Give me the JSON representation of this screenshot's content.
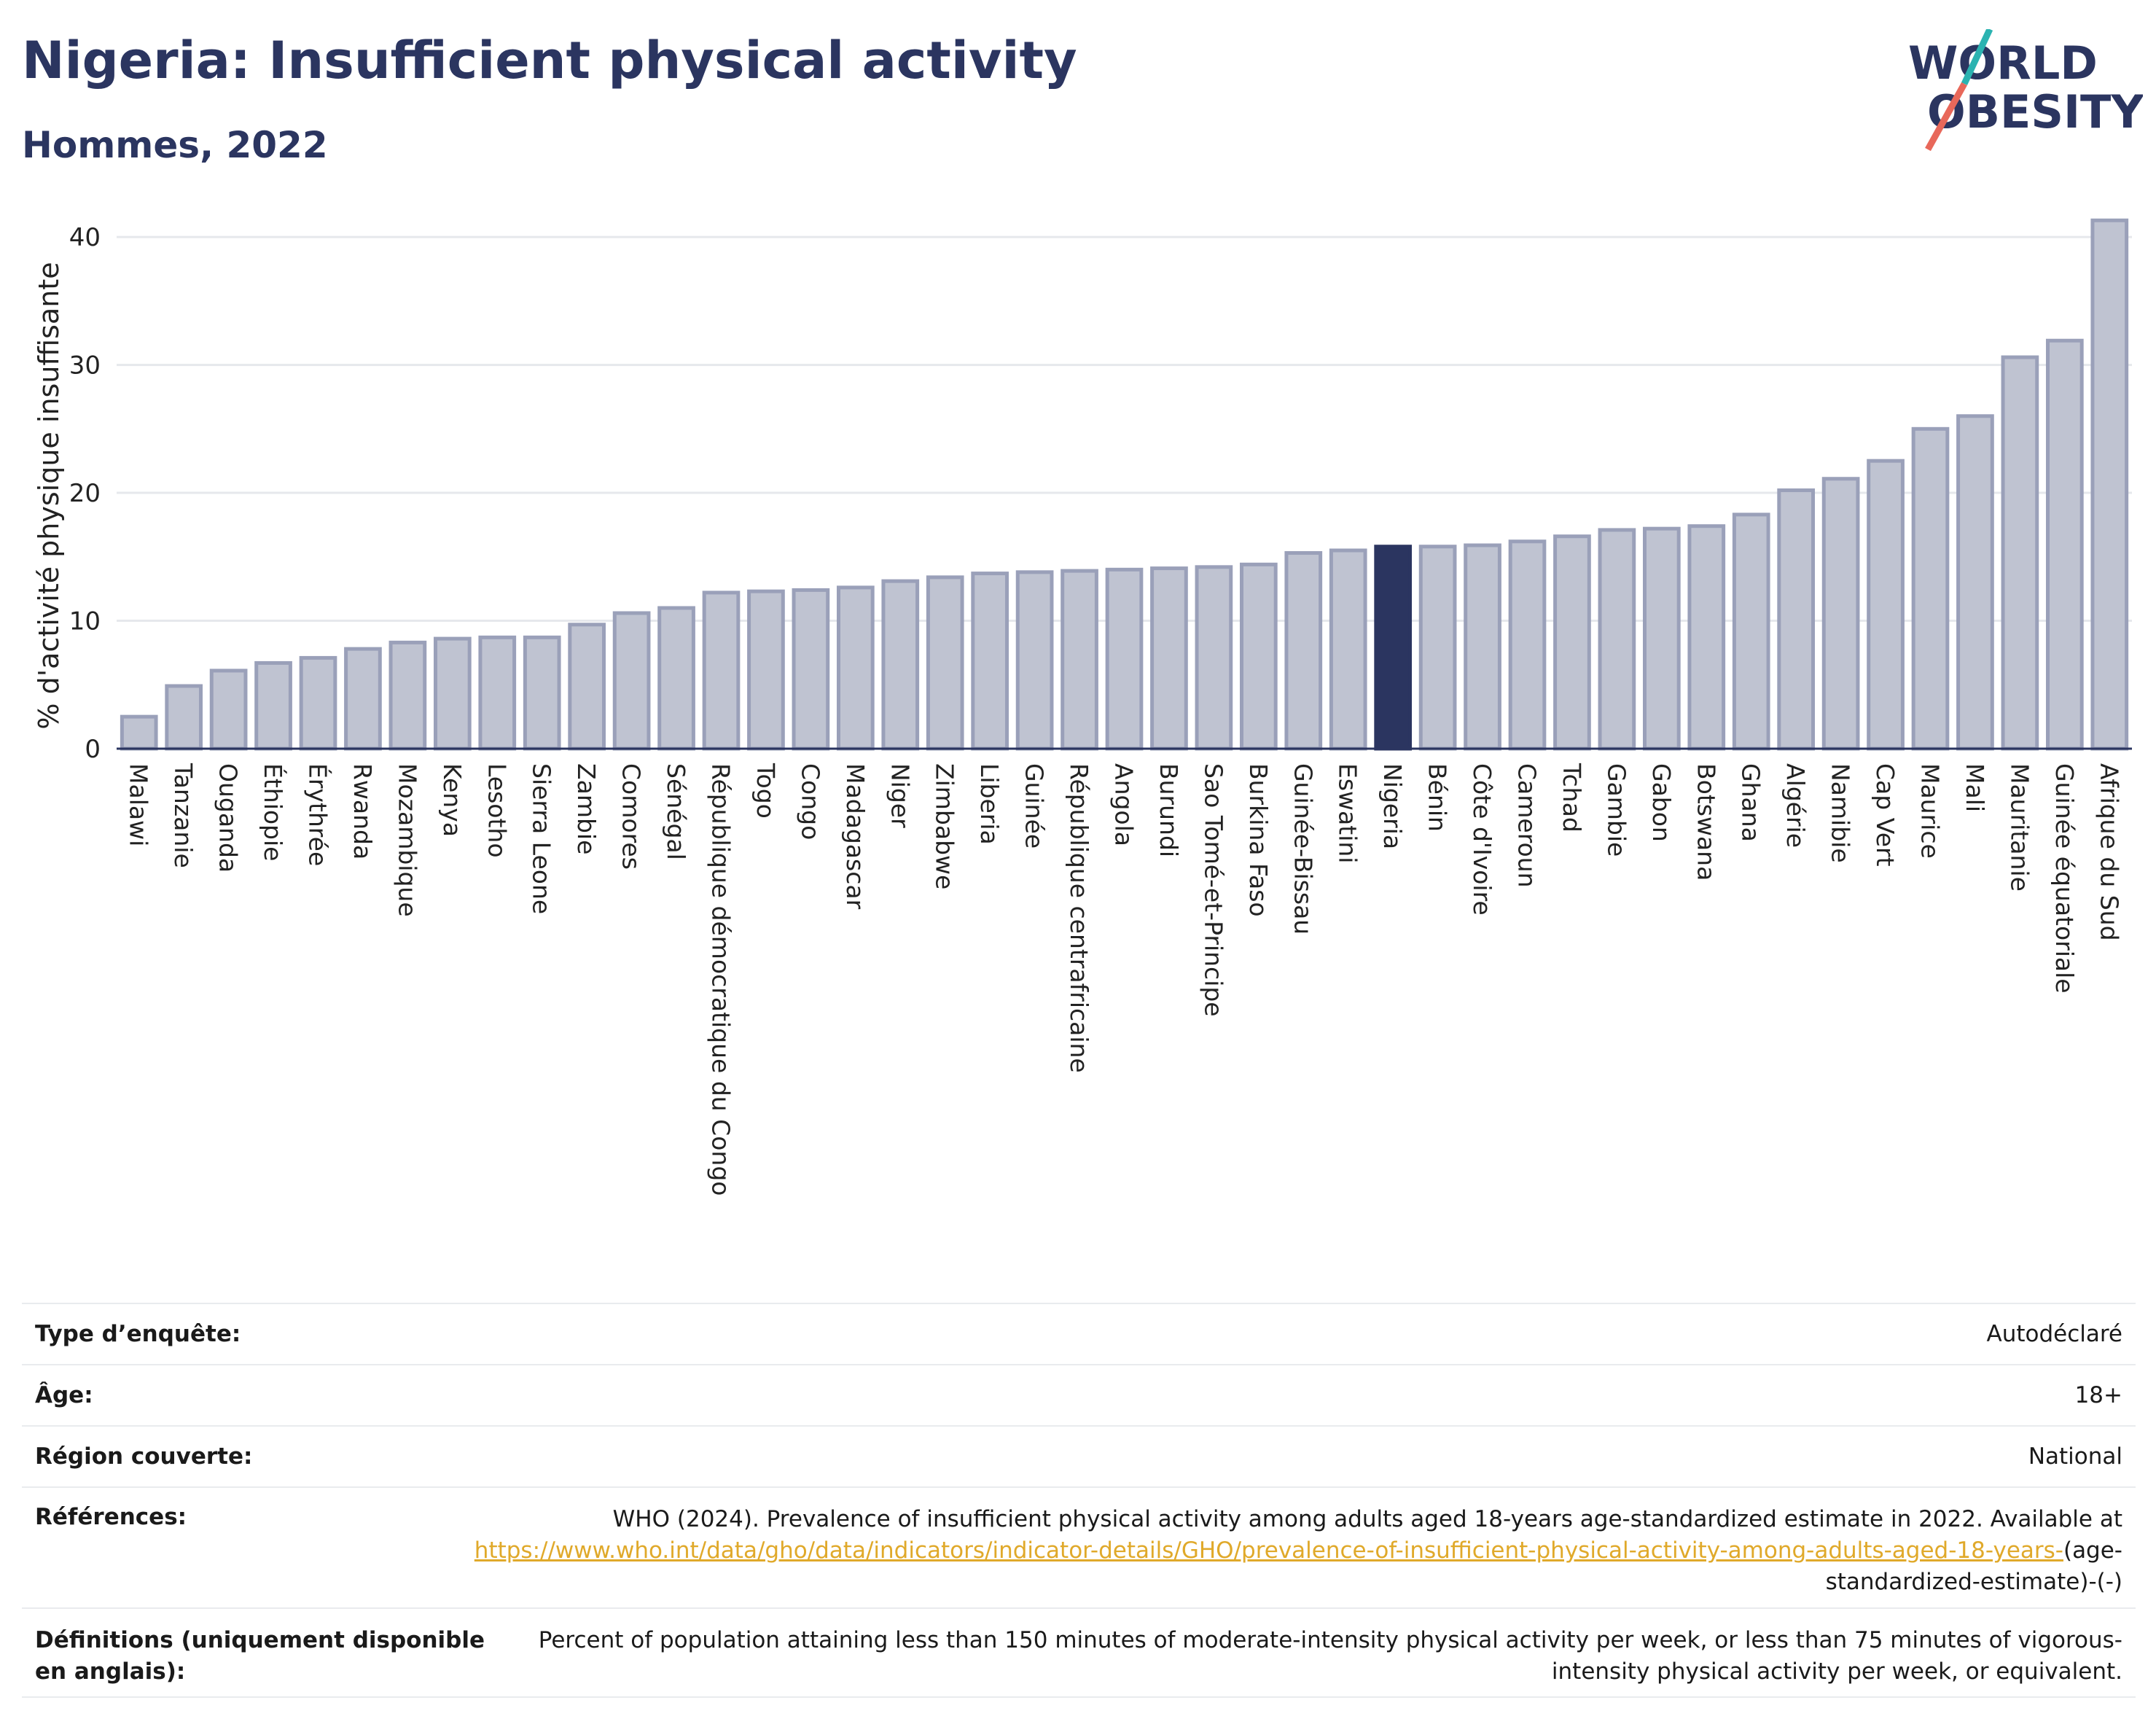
{
  "header": {
    "title": "Nigeria: Insufficient physical activity",
    "subtitle": "Hommes, 2022",
    "logo_line1": "WORLD",
    "logo_line2": "OBESITY"
  },
  "colors": {
    "bar_default": "#bfc3d1",
    "bar_default_stroke": "#9aa0b9",
    "bar_highlight": "#2b3560",
    "axis": "#2b3560",
    "grid": "#e6e8ec",
    "link": "#e0a92a",
    "logo_teal": "#2bb3b1",
    "logo_coral": "#e8685a"
  },
  "chart_data": {
    "type": "bar",
    "title": "",
    "xlabel": "",
    "ylabel": "% d'activité physique insuffisante",
    "ylim": [
      0,
      42
    ],
    "yticks": [
      0,
      10,
      20,
      30,
      40
    ],
    "grid": true,
    "highlight": "Nigeria",
    "categories": [
      "Malawi",
      "Tanzanie",
      "Ouganda",
      "Éthiopie",
      "Érythrée",
      "Rwanda",
      "Mozambique",
      "Kenya",
      "Lesotho",
      "Sierra Leone",
      "Zambie",
      "Comores",
      "Sénégal",
      "République démocratique du Congo",
      "Togo",
      "Congo",
      "Madagascar",
      "Niger",
      "Zimbabwe",
      "Liberia",
      "Guinée",
      "République centrafricaine",
      "Angola",
      "Burundi",
      "Sao Tomé-et-Principe",
      "Burkina Faso",
      "Guinée-Bissau",
      "Eswatini",
      "Nigeria",
      "Bénin",
      "Côte d'Ivoire",
      "Cameroun",
      "Tchad",
      "Gambie",
      "Gabon",
      "Botswana",
      "Ghana",
      "Algérie",
      "Namibie",
      "Cap Vert",
      "Maurice",
      "Mali",
      "Mauritanie",
      "Guinée équatoriale",
      "Afrique du Sud"
    ],
    "values": [
      2.5,
      4.9,
      6.1,
      6.7,
      7.1,
      7.8,
      8.3,
      8.6,
      8.7,
      8.7,
      9.7,
      10.6,
      11.0,
      12.2,
      12.3,
      12.4,
      12.6,
      13.1,
      13.4,
      13.7,
      13.8,
      13.9,
      14.0,
      14.1,
      14.2,
      14.4,
      15.3,
      15.5,
      15.8,
      15.8,
      15.9,
      16.2,
      16.6,
      17.1,
      17.2,
      17.4,
      18.3,
      20.2,
      21.1,
      22.5,
      25.0,
      26.0,
      30.6,
      31.9,
      41.3
    ]
  },
  "info": {
    "survey_type_label": "Type d’enquête:",
    "survey_type_value": "Autodéclaré",
    "age_label": "Âge:",
    "age_value": "18+",
    "region_label": "Région couverte:",
    "region_value": "National",
    "references_label": "Références:",
    "references_text": "WHO (2024). Prevalence of insufficient physical activity among adults aged 18-years age-standardized estimate in 2022. Available at",
    "references_link": "https://www.who.int/data/gho/data/indicators/indicator-details/GHO/prevalence-of-insufficient-physical-activity-among-adults-aged-18-years-",
    "references_suffix": "(age-standardized-estimate)-(-)",
    "definitions_label": "Définitions (uniquement disponible en anglais):",
    "definitions_text": "Percent of population attaining less than 150 minutes of moderate-intensity physical activity per week, or less than 75 minutes of vigorous-intensity physical activity per week, or equivalent."
  }
}
